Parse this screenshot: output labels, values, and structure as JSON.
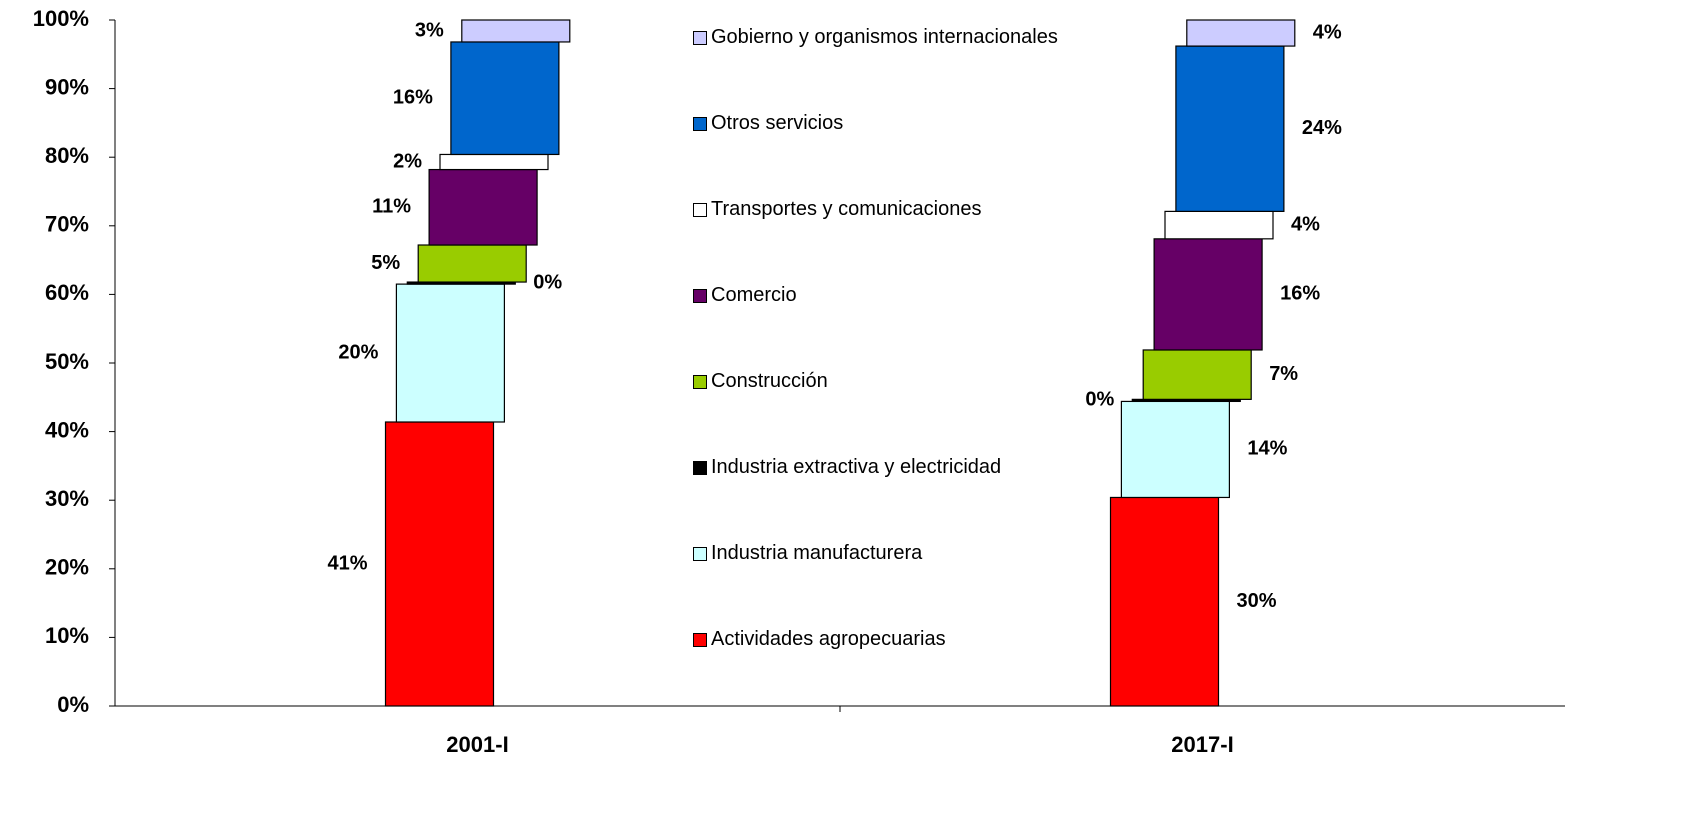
{
  "chart_data": {
    "type": "stacked-bar",
    "categories": [
      "2001-I",
      "2017-I"
    ],
    "ylim": [
      0,
      100
    ],
    "yticks": [
      {
        "value": 0,
        "label": "0%"
      },
      {
        "value": 10,
        "label": "10%"
      },
      {
        "value": 20,
        "label": "20%"
      },
      {
        "value": 30,
        "label": "30%"
      },
      {
        "value": 40,
        "label": "40%"
      },
      {
        "value": 50,
        "label": "50%"
      },
      {
        "value": 60,
        "label": "60%"
      },
      {
        "value": 70,
        "label": "70%"
      },
      {
        "value": 80,
        "label": "80%"
      },
      {
        "value": 90,
        "label": "90%"
      },
      {
        "value": 100,
        "label": "100%"
      }
    ],
    "series": [
      {
        "name": "Actividades agropecuarias",
        "color": "#ff0000",
        "values": [
          41.4,
          30.4
        ],
        "value_labels": [
          "41%",
          "30%"
        ]
      },
      {
        "name": "Industria manufacturera",
        "color": "#ccffff",
        "values": [
          20.1,
          14.0
        ],
        "value_labels": [
          "20%",
          "14%"
        ]
      },
      {
        "name": "Industria extractiva y electricidad",
        "color": "#000000",
        "values": [
          0.3,
          0.3
        ],
        "value_labels": [
          "0%",
          "0%"
        ]
      },
      {
        "name": "Construcción",
        "color": "#99cc00",
        "values": [
          5.4,
          7.2
        ],
        "value_labels": [
          "5%",
          "7%"
        ]
      },
      {
        "name": "Comercio",
        "color": "#660066",
        "values": [
          11.0,
          16.2
        ],
        "value_labels": [
          "11%",
          "16%"
        ]
      },
      {
        "name": "Transportes y comunicaciones",
        "color": "#ffffff",
        "values": [
          2.2,
          4.0
        ],
        "value_labels": [
          "2%",
          "4%"
        ]
      },
      {
        "name": "Otros servicios",
        "color": "#0066cc",
        "values": [
          16.4,
          24.1
        ],
        "value_labels": [
          "16%",
          "24%"
        ]
      },
      {
        "name": "Gobierno y organismos internacionales",
        "color": "#ccccff",
        "values": [
          3.2,
          3.8
        ],
        "value_labels": [
          "3%",
          "4%"
        ]
      }
    ]
  }
}
